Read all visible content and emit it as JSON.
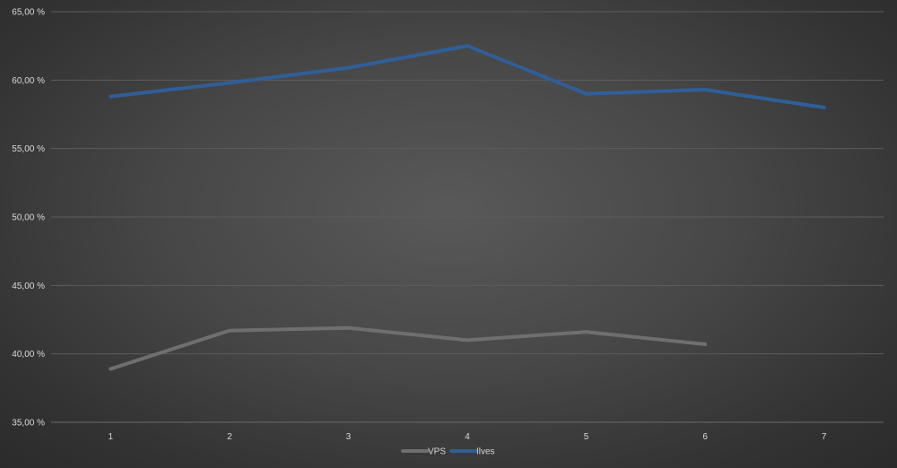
{
  "chart_data": {
    "type": "line",
    "title": "",
    "xlabel": "",
    "ylabel": "",
    "categories": [
      "1",
      "2",
      "3",
      "4",
      "5",
      "6",
      "7"
    ],
    "ylim": [
      35,
      65
    ],
    "yticks": [
      35,
      40,
      45,
      50,
      55,
      60,
      65
    ],
    "ytick_labels": [
      "35,00 %",
      "40,00 %",
      "45,00 %",
      "50,00 %",
      "55,00 %",
      "60,00 %",
      "65,00 %"
    ],
    "grid": true,
    "legend_position": "bottom",
    "series": [
      {
        "name": "VPS",
        "color": "#6f6f6f",
        "values": [
          38.9,
          41.7,
          41.9,
          41.0,
          41.6,
          40.7,
          null
        ]
      },
      {
        "name": "Ilves",
        "color": "#2f5f99",
        "values": [
          58.8,
          59.8,
          60.9,
          62.5,
          59.0,
          59.3,
          58.0
        ]
      }
    ]
  }
}
